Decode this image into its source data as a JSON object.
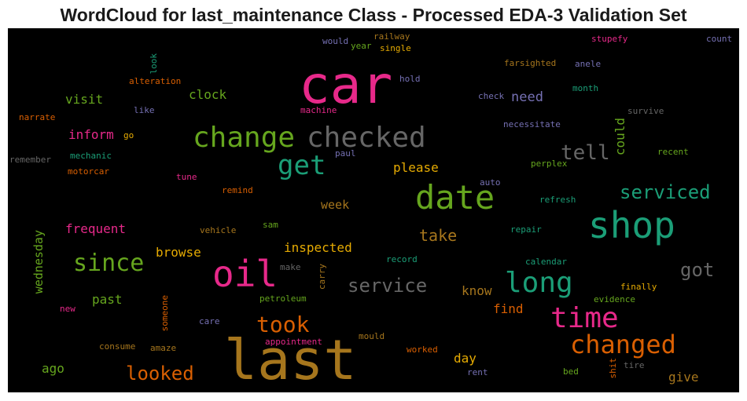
{
  "title": "WordCloud for last_maintenance Class - Processed EDA-3 Validation Set",
  "chart_data": {
    "type": "wordcloud",
    "background": "#000000",
    "words": [
      {
        "text": "car",
        "color": "#e7298a"
      },
      {
        "text": "last",
        "color": "#a6761d"
      },
      {
        "text": "shop",
        "color": "#1b9e77"
      },
      {
        "text": "date",
        "color": "#66a61e"
      },
      {
        "text": "oil",
        "color": "#e7298a"
      },
      {
        "text": "change",
        "color": "#66a61e"
      },
      {
        "text": "checked",
        "color": "#666666"
      },
      {
        "text": "time",
        "color": "#e7298a"
      },
      {
        "text": "changed",
        "color": "#d95f02"
      },
      {
        "text": "long",
        "color": "#1b9e77"
      },
      {
        "text": "get",
        "color": "#1b9e77"
      },
      {
        "text": "since",
        "color": "#66a61e"
      },
      {
        "text": "tell",
        "color": "#666666"
      },
      {
        "text": "took",
        "color": "#d95f02"
      },
      {
        "text": "serviced",
        "color": "#1b9e77"
      },
      {
        "text": "service",
        "color": "#666666"
      },
      {
        "text": "got",
        "color": "#666666"
      },
      {
        "text": "looked",
        "color": "#d95f02"
      },
      {
        "text": "take",
        "color": "#a6761d"
      },
      {
        "text": "need",
        "color": "#7570b3"
      },
      {
        "text": "inform",
        "color": "#e7298a"
      },
      {
        "text": "clock",
        "color": "#66a61e"
      },
      {
        "text": "visit",
        "color": "#66a61e"
      },
      {
        "text": "please",
        "color": "#e6ab02"
      },
      {
        "text": "inspected",
        "color": "#e6ab02"
      },
      {
        "text": "frequent",
        "color": "#e7298a"
      },
      {
        "text": "browse",
        "color": "#e6ab02"
      },
      {
        "text": "know",
        "color": "#a6761d"
      },
      {
        "text": "past",
        "color": "#66a61e"
      },
      {
        "text": "week",
        "color": "#a6761d"
      },
      {
        "text": "find",
        "color": "#d95f02"
      },
      {
        "text": "day",
        "color": "#e6ab02"
      },
      {
        "text": "give",
        "color": "#a6761d"
      },
      {
        "text": "ago",
        "color": "#66a61e"
      },
      {
        "text": "could",
        "color": "#66a61e"
      },
      {
        "text": "wednesday",
        "color": "#66a61e"
      },
      {
        "text": "railway",
        "color": "#a6761d"
      },
      {
        "text": "would",
        "color": "#7570b3"
      },
      {
        "text": "year",
        "color": "#66a61e"
      },
      {
        "text": "single",
        "color": "#e6ab02"
      },
      {
        "text": "stupefy",
        "color": "#e7298a"
      },
      {
        "text": "count",
        "color": "#7570b3"
      },
      {
        "text": "look",
        "color": "#1b9e77"
      },
      {
        "text": "farsighted",
        "color": "#a6761d"
      },
      {
        "text": "anele",
        "color": "#7570b3"
      },
      {
        "text": "alteration",
        "color": "#d95f02"
      },
      {
        "text": "hold",
        "color": "#7570b3"
      },
      {
        "text": "month",
        "color": "#1b9e77"
      },
      {
        "text": "check",
        "color": "#7570b3"
      },
      {
        "text": "survive",
        "color": "#666666"
      },
      {
        "text": "like",
        "color": "#7570b3"
      },
      {
        "text": "machine",
        "color": "#e7298a"
      },
      {
        "text": "narrate",
        "color": "#d95f02"
      },
      {
        "text": "necessitate",
        "color": "#7570b3"
      },
      {
        "text": "go",
        "color": "#e6ab02"
      },
      {
        "text": "mechanic",
        "color": "#1b9e77"
      },
      {
        "text": "recent",
        "color": "#66a61e"
      },
      {
        "text": "remember",
        "color": "#666666"
      },
      {
        "text": "paul",
        "color": "#7570b3"
      },
      {
        "text": "perplex",
        "color": "#66a61e"
      },
      {
        "text": "motorcar",
        "color": "#d95f02"
      },
      {
        "text": "tune",
        "color": "#e7298a"
      },
      {
        "text": "auto",
        "color": "#7570b3"
      },
      {
        "text": "remind",
        "color": "#d95f02"
      },
      {
        "text": "refresh",
        "color": "#1b9e77"
      },
      {
        "text": "vehicle",
        "color": "#a6761d"
      },
      {
        "text": "sam",
        "color": "#66a61e"
      },
      {
        "text": "repair",
        "color": "#1b9e77"
      },
      {
        "text": "record",
        "color": "#1b9e77"
      },
      {
        "text": "make",
        "color": "#666666"
      },
      {
        "text": "carry",
        "color": "#a6761d"
      },
      {
        "text": "calendar",
        "color": "#1b9e77"
      },
      {
        "text": "finally",
        "color": "#e6ab02"
      },
      {
        "text": "petroleum",
        "color": "#66a61e"
      },
      {
        "text": "evidence",
        "color": "#66a61e"
      },
      {
        "text": "new",
        "color": "#e7298a"
      },
      {
        "text": "someone",
        "color": "#d95f02"
      },
      {
        "text": "care",
        "color": "#7570b3"
      },
      {
        "text": "appointment",
        "color": "#e7298a"
      },
      {
        "text": "mould",
        "color": "#a6761d"
      },
      {
        "text": "consume",
        "color": "#a6761d"
      },
      {
        "text": "amaze",
        "color": "#a6761d"
      },
      {
        "text": "worked",
        "color": "#d95f02"
      },
      {
        "text": "bed",
        "color": "#66a61e"
      },
      {
        "text": "tire",
        "color": "#666666"
      },
      {
        "text": "shit",
        "color": "#d95f02"
      },
      {
        "text": "rent",
        "color": "#7570b3"
      }
    ]
  }
}
